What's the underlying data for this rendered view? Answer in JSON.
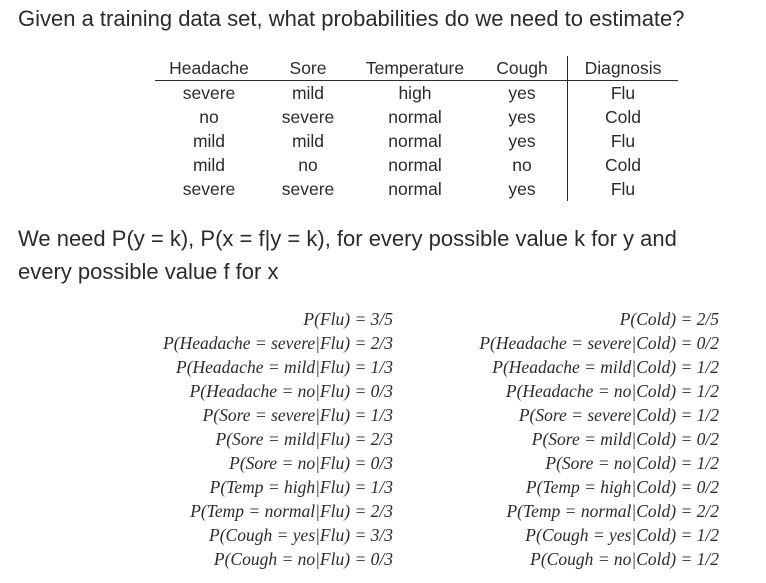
{
  "title": "Given a training data set, what probabilities do we need to estimate?",
  "table": {
    "headers": [
      "Headache",
      "Sore",
      "Temperature",
      "Cough",
      "Diagnosis"
    ],
    "rows": [
      [
        "severe",
        "mild",
        "high",
        "yes",
        "Flu"
      ],
      [
        "no",
        "severe",
        "normal",
        "yes",
        "Cold"
      ],
      [
        "mild",
        "mild",
        "normal",
        "yes",
        "Flu"
      ],
      [
        "mild",
        "no",
        "normal",
        "no",
        "Cold"
      ],
      [
        "severe",
        "severe",
        "normal",
        "yes",
        "Flu"
      ]
    ]
  },
  "statement": {
    "line1": "We need P(y = k), P(x = f|y = k), for every possible value k for y and",
    "line2": "every possible value f for x"
  },
  "flu_probs": [
    "P(Flu) = 3/5",
    "P(Headache = severe|Flu) = 2/3",
    "P(Headache = mild|Flu) = 1/3",
    "P(Headache = no|Flu) = 0/3",
    "P(Sore = severe|Flu) = 1/3",
    "P(Sore = mild|Flu) = 2/3",
    "P(Sore = no|Flu) = 0/3",
    "P(Temp = high|Flu) = 1/3",
    "P(Temp = normal|Flu) = 2/3",
    "P(Cough = yes|Flu) = 3/3",
    "P(Cough = no|Flu) = 0/3"
  ],
  "cold_probs": [
    "P(Cold) = 2/5",
    "P(Headache = severe|Cold) = 0/2",
    "P(Headache = mild|Cold) = 1/2",
    "P(Headache = no|Cold) = 1/2",
    "P(Sore = severe|Cold) = 1/2",
    "P(Sore = mild|Cold) = 0/2",
    "P(Sore = no|Cold) = 1/2",
    "P(Temp = high|Cold) = 0/2",
    "P(Temp = normal|Cold) = 2/2",
    "P(Cough = yes|Cold) = 1/2",
    "P(Cough = no|Cold) = 1/2"
  ]
}
